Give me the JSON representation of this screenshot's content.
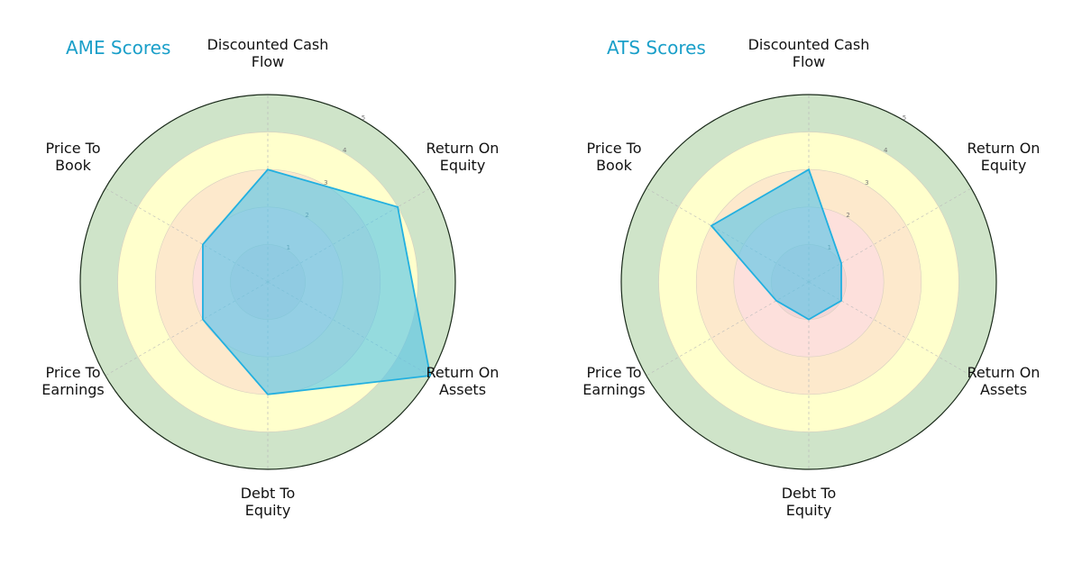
{
  "chart_data": [
    {
      "type": "radar",
      "title": "AME Scores",
      "axes": [
        "Discounted Cash Flow",
        "Return On Equity",
        "Return On Assets",
        "Debt To Equity",
        "Price To Earnings",
        "Price To Book"
      ],
      "values": [
        3,
        4,
        5,
        3,
        2,
        2
      ],
      "rlim": [
        0,
        5
      ],
      "ticks": [
        "1",
        "2",
        "3",
        "4",
        "5"
      ]
    },
    {
      "type": "radar",
      "title": "ATS Scores",
      "axes": [
        "Discounted Cash Flow",
        "Return On Equity",
        "Return On Assets",
        "Debt To Equity",
        "Price To Earnings",
        "Price To Book"
      ],
      "values": [
        3,
        1,
        1,
        1,
        1,
        3
      ],
      "rlim": [
        0,
        5
      ],
      "ticks": [
        "1",
        "2",
        "3",
        "4",
        "5"
      ]
    }
  ],
  "colors": {
    "title": "#1a9fc9",
    "band_5": "#cfe4c9",
    "band_4": "#ffffcc",
    "band_3": "#fde9cc",
    "band_2": "#fde0dc",
    "band_1": "#f3d6d6",
    "fill": "#4fc3ea",
    "stroke": "#22b0e0"
  }
}
